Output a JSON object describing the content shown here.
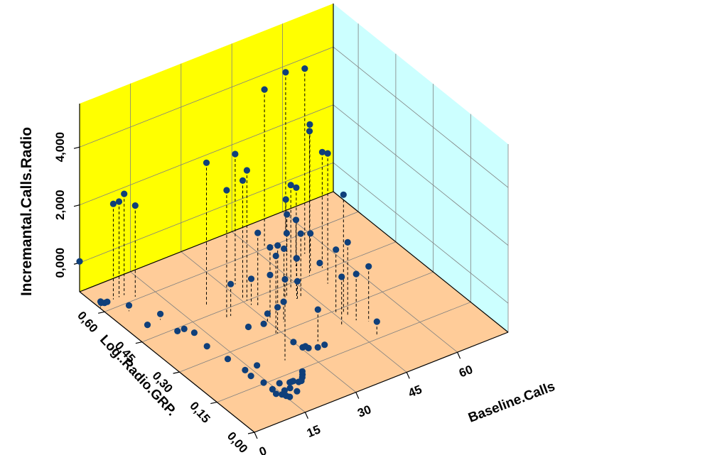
{
  "chart_data": {
    "type": "scatter",
    "projection": "3d",
    "xlabel": "Baseline.Calls",
    "ylabel": "Log..Radio.GRP.",
    "zlabel": "Incremantal.Calls.Radio",
    "x_ticks": [
      "0",
      "15",
      "30",
      "45",
      "60"
    ],
    "y_ticks": [
      "0,00",
      "0,15",
      "0,30",
      "0,45",
      "0,60"
    ],
    "z_ticks": [
      "0,000",
      "2,000",
      "4,000"
    ],
    "xlim": [
      0,
      75
    ],
    "ylim": [
      0,
      0.7
    ],
    "zlim": [
      -1,
      5.5
    ],
    "grid": true,
    "drop_lines": true,
    "colors": {
      "back_wall": "#ffff00",
      "side_wall": "#ccffff",
      "floor": "#ffcc99",
      "point": "#0f3f7a",
      "grid": "#808080"
    },
    "points": [
      [
        0.0,
        0.7,
        0.05
      ],
      [
        0.3,
        0.62,
        -0.8
      ],
      [
        1.2,
        0.63,
        -0.95
      ],
      [
        2.2,
        0.63,
        -1.0
      ],
      [
        3.0,
        0.63,
        -1.0
      ],
      [
        5.0,
        0.57,
        -0.8
      ],
      [
        4.8,
        0.63,
        2.3
      ],
      [
        5.3,
        0.5,
        -1.0
      ],
      [
        6.5,
        0.63,
        2.3
      ],
      [
        8.0,
        0.63,
        2.5
      ],
      [
        9.8,
        0.61,
        2.15
      ],
      [
        9.1,
        0.5,
        -0.8
      ],
      [
        9.0,
        0.43,
        -0.9
      ],
      [
        11.0,
        0.43,
        -0.92
      ],
      [
        12.5,
        0.41,
        -0.98
      ],
      [
        11.8,
        0.35,
        -1.0
      ],
      [
        12.8,
        0.28,
        -1.0
      ],
      [
        13.5,
        0.22,
        -1.0
      ],
      [
        13.0,
        0.19,
        -0.97
      ],
      [
        13.8,
        0.15,
        -0.96
      ],
      [
        13.8,
        0.1,
        -1.0
      ],
      [
        14.2,
        0.12,
        -1.0
      ],
      [
        14.8,
        0.09,
        -1.0
      ],
      [
        15.3,
        0.08,
        -1.0
      ],
      [
        15.6,
        0.07,
        -0.98
      ],
      [
        16.3,
        0.1,
        -1.0
      ],
      [
        17.0,
        0.13,
        -0.99
      ],
      [
        17.9,
        0.1,
        -0.99
      ],
      [
        18.5,
        0.08,
        -0.99
      ],
      [
        19.3,
        0.12,
        -1.0
      ],
      [
        19.8,
        0.12,
        -1.0
      ],
      [
        20.3,
        0.12,
        -1.0
      ],
      [
        21.2,
        0.11,
        -1.0
      ],
      [
        22.0,
        0.11,
        -1.0
      ],
      [
        23.0,
        0.12,
        -1.0
      ],
      [
        23.8,
        0.13,
        -1.0
      ],
      [
        24.5,
        0.14,
        -1.0
      ],
      [
        17.0,
        0.22,
        -1.0
      ],
      [
        22.0,
        0.49,
        3.9
      ],
      [
        22.8,
        0.42,
        3.4
      ],
      [
        23.8,
        0.2,
        1.8
      ],
      [
        24.8,
        0.36,
        -1.0
      ],
      [
        24.0,
        0.42,
        0.1
      ],
      [
        28.5,
        0.3,
        1.7
      ],
      [
        28.6,
        0.35,
        -1.0
      ],
      [
        29.0,
        0.3,
        -0.1
      ],
      [
        29.7,
        0.35,
        -0.7
      ],
      [
        30.0,
        0.25,
        -1.0
      ],
      [
        30.5,
        0.22,
        -1.0
      ],
      [
        31.3,
        0.22,
        -1.0
      ],
      [
        31.5,
        0.21,
        -1.0
      ],
      [
        33.5,
        0.2,
        -1.0
      ],
      [
        35.0,
        0.22,
        0.1
      ],
      [
        30.5,
        0.46,
        3.1
      ],
      [
        30.8,
        0.43,
        -0.1
      ],
      [
        35.5,
        0.2,
        -1.0
      ],
      [
        31.0,
        0.45,
        3.5
      ],
      [
        32.7,
        0.52,
        3.5
      ],
      [
        32.0,
        0.42,
        1.5
      ],
      [
        31.2,
        0.36,
        0.5
      ],
      [
        33.0,
        0.33,
        -0.3
      ],
      [
        36.4,
        0.4,
        1.0
      ],
      [
        39.0,
        0.41,
        0.7
      ],
      [
        39.8,
        0.41,
        1.2
      ],
      [
        41.5,
        0.39,
        -0.4
      ],
      [
        42.5,
        0.39,
        1.2
      ],
      [
        41.3,
        0.39,
        0.4
      ],
      [
        42.5,
        0.43,
        2.6
      ],
      [
        42.7,
        0.41,
        0.2
      ],
      [
        45.5,
        0.29,
        1.2
      ],
      [
        43.5,
        0.24,
        0.7
      ],
      [
        47.5,
        0.27,
        1.5
      ],
      [
        47.8,
        0.24,
        0.6
      ],
      [
        50.0,
        0.22,
        0.9
      ],
      [
        47.0,
        0.28,
        3.1
      ],
      [
        48.0,
        0.16,
        -0.5
      ],
      [
        43.0,
        0.52,
        -0.2
      ],
      [
        49.2,
        0.5,
        0.6
      ],
      [
        50.2,
        0.55,
        0.4
      ],
      [
        50.5,
        0.46,
        0.35
      ],
      [
        51.5,
        0.53,
        1.4
      ],
      [
        54.0,
        0.47,
        -0.9
      ],
      [
        55.8,
        0.63,
        0.1
      ],
      [
        48.0,
        0.61,
        4.4
      ],
      [
        51.2,
        0.4,
        3.5
      ],
      [
        49.5,
        0.45,
        4.0
      ],
      [
        54.0,
        0.53,
        5.4
      ],
      [
        55.5,
        0.53,
        3.4
      ],
      [
        55.0,
        0.62,
        4.6
      ],
      [
        54.0,
        0.46,
        3.0
      ]
    ]
  }
}
